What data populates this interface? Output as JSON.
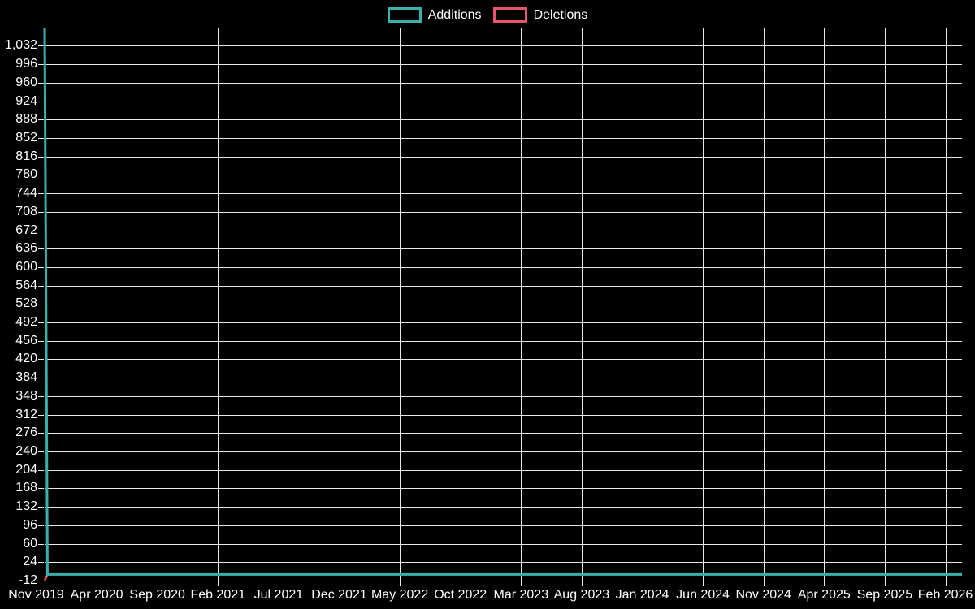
{
  "chart_data": {
    "type": "line",
    "title": "",
    "xlabel": "",
    "ylabel": "",
    "grid": true,
    "background_color": "#000000",
    "grid_color": "#e8e8e8",
    "text_color": "#ffffff",
    "legend": {
      "position": "top-center",
      "items": [
        {
          "label": "Additions",
          "color": "#39b0aa"
        },
        {
          "label": "Deletions",
          "color": "#e4566b"
        }
      ]
    },
    "x_ticks": [
      "Nov 2019",
      "Apr 2020",
      "Sep 2020",
      "Feb 2021",
      "Jul 2021",
      "Dec 2021",
      "May 2022",
      "Oct 2022",
      "Mar 2023",
      "Aug 2023",
      "Jan 2024",
      "Jun 2024",
      "Nov 2024",
      "Apr 2025",
      "Sep 2025",
      "Feb 2026"
    ],
    "y_ticks": [
      "1,032",
      "996",
      "960",
      "924",
      "888",
      "852",
      "816",
      "780",
      "744",
      "708",
      "672",
      "636",
      "600",
      "564",
      "528",
      "492",
      "456",
      "420",
      "384",
      "348",
      "312",
      "276",
      "240",
      "204",
      "168",
      "132",
      "96",
      "60",
      "24",
      "-12"
    ],
    "ylim": [
      -12,
      1066
    ],
    "x_range_weeks": 330,
    "series": [
      {
        "name": "Additions",
        "color": "#39b0aa",
        "points": [
          {
            "x": "Nov 2019 week 1",
            "week": 0,
            "y": 1066
          },
          {
            "x": "Nov 2019 week 2",
            "week": 1,
            "y": 0
          },
          {
            "x": "Mar 2026",
            "week": 330,
            "y": 0
          }
        ]
      },
      {
        "name": "Deletions",
        "color": "#e4566b",
        "points": [
          {
            "x": "Nov 2019 week 1",
            "week": 0,
            "y": -12
          },
          {
            "x": "Nov 2019 week 2",
            "week": 1,
            "y": 0
          },
          {
            "x": "Mar 2026",
            "week": 330,
            "y": 0
          }
        ]
      }
    ]
  }
}
